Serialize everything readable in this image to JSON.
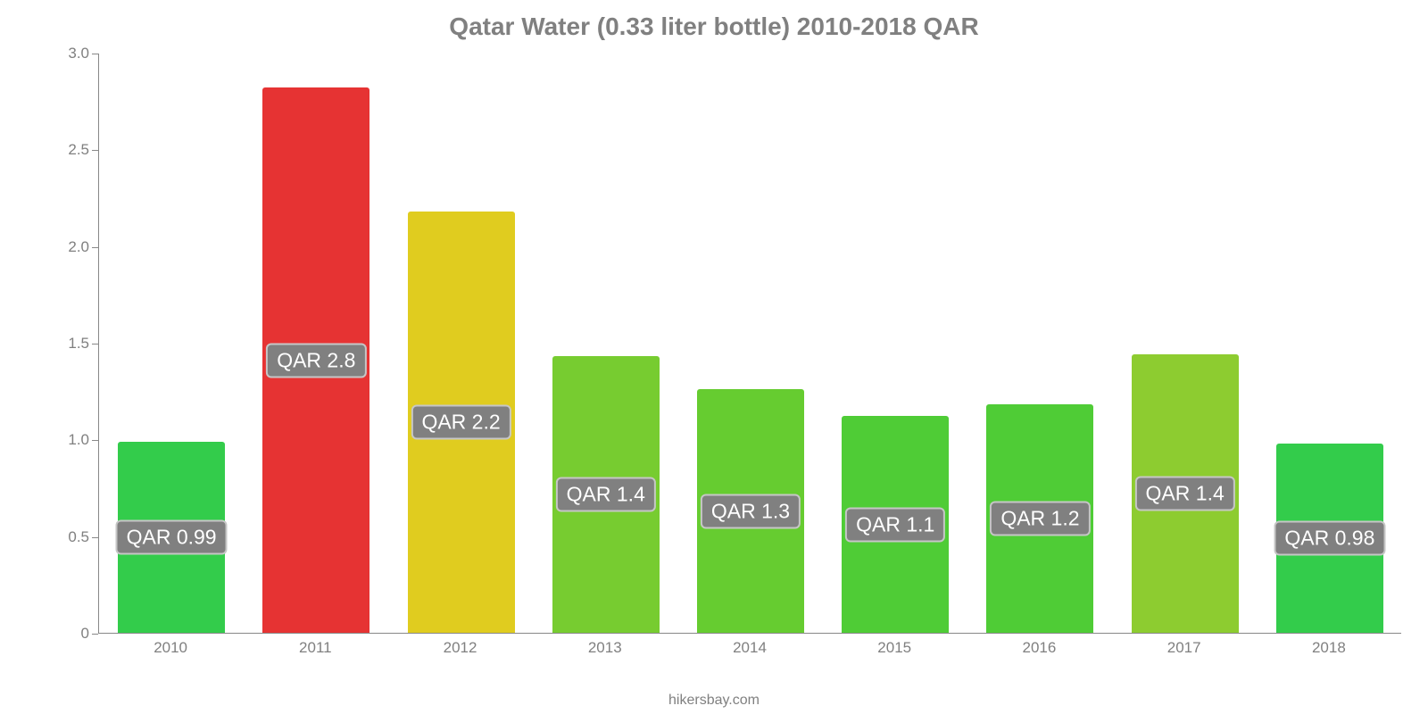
{
  "chart": {
    "type": "bar",
    "title": "Qatar Water (0.33 liter bottle) 2010-2018 QAR",
    "title_fontsize": 28,
    "title_color": "#808080",
    "background_color": "#ffffff",
    "axis_color": "#888888",
    "tick_label_color": "#808080",
    "tick_label_fontsize": 17,
    "value_label_fontsize": 23,
    "value_label_bg": "#808080",
    "value_label_text_color": "#ffffff",
    "value_label_border_color": "rgba(255,255,255,0.55)",
    "ylim": [
      0,
      3.0
    ],
    "ytick_step": 0.5,
    "yticks": [
      "0",
      "0.5",
      "1.0",
      "1.5",
      "2.0",
      "2.5",
      "3.0"
    ],
    "categories": [
      "2010",
      "2011",
      "2012",
      "2013",
      "2014",
      "2015",
      "2016",
      "2017",
      "2018"
    ],
    "values": [
      0.99,
      2.82,
      2.18,
      1.43,
      1.26,
      1.12,
      1.18,
      1.44,
      0.98
    ],
    "value_labels": [
      "QAR 0.99",
      "QAR 2.8",
      "QAR 2.2",
      "QAR 1.4",
      "QAR 1.3",
      "QAR 1.1",
      "QAR 1.2",
      "QAR 1.4",
      "QAR 0.98"
    ],
    "bar_colors": [
      "#33cc4b",
      "#e63333",
      "#e0cc1f",
      "#77cc30",
      "#66cc30",
      "#4fcc36",
      "#4fcc36",
      "#8dcc30",
      "#33cc4b"
    ],
    "bar_width": 0.74,
    "bar_border_radius": 3,
    "attribution": "hikersbay.com"
  }
}
